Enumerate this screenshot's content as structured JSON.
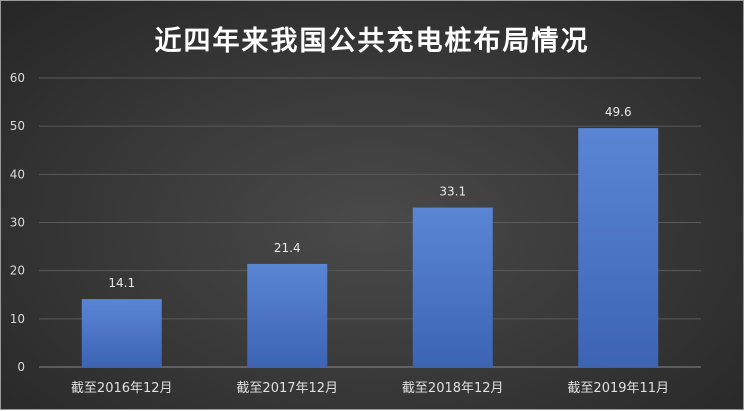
{
  "chart_data": {
    "type": "bar",
    "title": "近四年来我国公共充电桩布局情况",
    "categories": [
      "截至2016年12月",
      "截至2017年12月",
      "截至2018年12月",
      "截至2019年11月"
    ],
    "values": [
      14.1,
      21.4,
      33.1,
      49.6
    ],
    "data_labels": [
      "14.1",
      "21.4",
      "33.1",
      "49.6"
    ],
    "xlabel": "",
    "ylabel": "",
    "ylim": [
      0,
      60
    ],
    "yticks": [
      "0",
      "10",
      "20",
      "30",
      "40",
      "50",
      "60"
    ],
    "grid": true,
    "legend": "none",
    "colors": {
      "bar": "#4472c4",
      "bar_light": "#5b86d6",
      "background": "#3a3a3a",
      "text": "#ffffff"
    }
  }
}
